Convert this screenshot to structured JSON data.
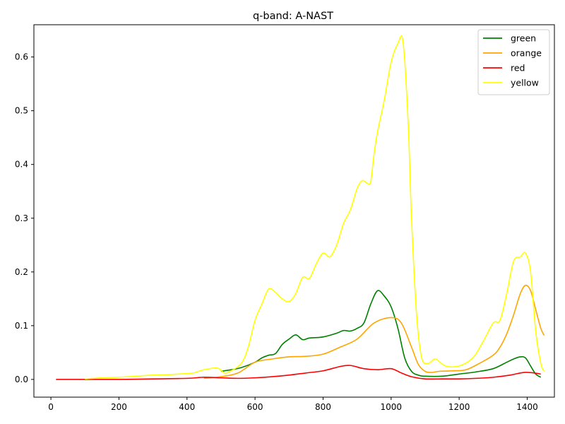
{
  "chart_data": {
    "type": "line",
    "title": "q-band: A-NAST",
    "xlabel": "",
    "ylabel": "",
    "xlim": [
      -50,
      1480
    ],
    "ylim": [
      -0.033,
      0.66
    ],
    "xticks": [
      0,
      200,
      400,
      600,
      800,
      1000,
      1200,
      1400
    ],
    "yticks": [
      0.0,
      0.1,
      0.2,
      0.3,
      0.4,
      0.5,
      0.6
    ],
    "xtick_labels": [
      "0",
      "200",
      "400",
      "600",
      "800",
      "1000",
      "1200",
      "1400"
    ],
    "ytick_labels": [
      "0.0",
      "0.1",
      "0.2",
      "0.3",
      "0.4",
      "0.5",
      "0.6"
    ],
    "grid": false,
    "legend_position": "top-right",
    "series": [
      {
        "name": "green",
        "color": "#008000",
        "x": [
          500,
          530,
          560,
          600,
          620,
          640,
          660,
          680,
          700,
          720,
          740,
          760,
          800,
          840,
          860,
          880,
          900,
          920,
          940,
          960,
          980,
          1000,
          1020,
          1040,
          1060,
          1080,
          1100,
          1150,
          1200,
          1250,
          1300,
          1340,
          1360,
          1380,
          1395,
          1410,
          1425,
          1440
        ],
        "y": [
          0.015,
          0.018,
          0.022,
          0.032,
          0.04,
          0.045,
          0.048,
          0.065,
          0.075,
          0.083,
          0.074,
          0.077,
          0.079,
          0.086,
          0.091,
          0.09,
          0.095,
          0.105,
          0.14,
          0.165,
          0.155,
          0.135,
          0.095,
          0.04,
          0.015,
          0.008,
          0.006,
          0.006,
          0.01,
          0.014,
          0.02,
          0.032,
          0.038,
          0.042,
          0.04,
          0.025,
          0.01,
          0.004
        ]
      },
      {
        "name": "orange",
        "color": "#ffa500",
        "x": [
          450,
          500,
          550,
          600,
          650,
          700,
          750,
          800,
          850,
          900,
          950,
          1000,
          1030,
          1060,
          1080,
          1100,
          1120,
          1140,
          1180,
          1220,
          1260,
          1300,
          1320,
          1340,
          1360,
          1380,
          1395,
          1410,
          1425,
          1440,
          1450
        ],
        "y": [
          0.002,
          0.005,
          0.012,
          0.032,
          0.038,
          0.042,
          0.043,
          0.047,
          0.06,
          0.075,
          0.105,
          0.115,
          0.105,
          0.06,
          0.028,
          0.015,
          0.013,
          0.015,
          0.016,
          0.018,
          0.03,
          0.045,
          0.06,
          0.085,
          0.12,
          0.16,
          0.175,
          0.165,
          0.13,
          0.095,
          0.082
        ]
      },
      {
        "name": "red",
        "color": "#ff0000",
        "x": [
          15,
          100,
          200,
          300,
          400,
          450,
          500,
          550,
          600,
          650,
          700,
          750,
          800,
          850,
          880,
          920,
          960,
          1000,
          1030,
          1060,
          1100,
          1150,
          1200,
          1250,
          1300,
          1350,
          1390,
          1420,
          1440
        ],
        "y": [
          0.0,
          0.0,
          0.0,
          0.001,
          0.002,
          0.004,
          0.003,
          0.002,
          0.003,
          0.005,
          0.008,
          0.012,
          0.016,
          0.024,
          0.026,
          0.02,
          0.018,
          0.02,
          0.012,
          0.005,
          0.001,
          0.001,
          0.001,
          0.002,
          0.004,
          0.008,
          0.013,
          0.012,
          0.01
        ]
      },
      {
        "name": "yellow",
        "color": "#ffff00",
        "x": [
          100,
          150,
          200,
          250,
          300,
          350,
          400,
          420,
          450,
          490,
          510,
          530,
          560,
          580,
          600,
          620,
          640,
          660,
          680,
          700,
          720,
          740,
          760,
          780,
          800,
          820,
          840,
          860,
          880,
          900,
          915,
          930,
          940,
          950,
          960,
          980,
          1000,
          1020,
          1035,
          1050,
          1060,
          1075,
          1090,
          1110,
          1130,
          1160,
          1200,
          1240,
          1270,
          1300,
          1320,
          1340,
          1360,
          1380,
          1395,
          1410,
          1425,
          1440,
          1450
        ],
        "y": [
          0.001,
          0.003,
          0.004,
          0.006,
          0.008,
          0.009,
          0.011,
          0.012,
          0.018,
          0.021,
          0.012,
          0.016,
          0.03,
          0.06,
          0.11,
          0.14,
          0.168,
          0.162,
          0.15,
          0.145,
          0.16,
          0.19,
          0.188,
          0.215,
          0.235,
          0.228,
          0.25,
          0.29,
          0.315,
          0.355,
          0.37,
          0.365,
          0.368,
          0.42,
          0.46,
          0.52,
          0.59,
          0.625,
          0.628,
          0.48,
          0.3,
          0.12,
          0.04,
          0.03,
          0.038,
          0.025,
          0.025,
          0.04,
          0.07,
          0.105,
          0.11,
          0.16,
          0.22,
          0.228,
          0.235,
          0.2,
          0.09,
          0.03,
          0.015
        ]
      }
    ]
  }
}
